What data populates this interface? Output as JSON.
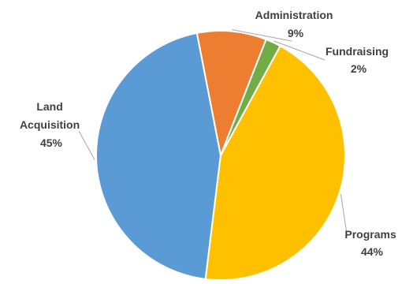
{
  "chart_data": {
    "type": "pie",
    "categories": [
      "Land Acquisition",
      "Administration",
      "Fundraising",
      "Programs"
    ],
    "values": [
      45,
      9,
      2,
      44
    ],
    "label_lines": [
      [
        "Land",
        "Acquisition",
        "45%"
      ],
      [
        "Administration",
        "9%"
      ],
      [
        "Fundraising",
        "2%"
      ],
      [
        "Programs",
        "44%"
      ]
    ],
    "colors": [
      "#5b9bd5",
      "#ed7d31",
      "#70ad47",
      "#ffc000"
    ],
    "start_angle_deg": 187,
    "direction": "clockwise",
    "legend": "none"
  }
}
